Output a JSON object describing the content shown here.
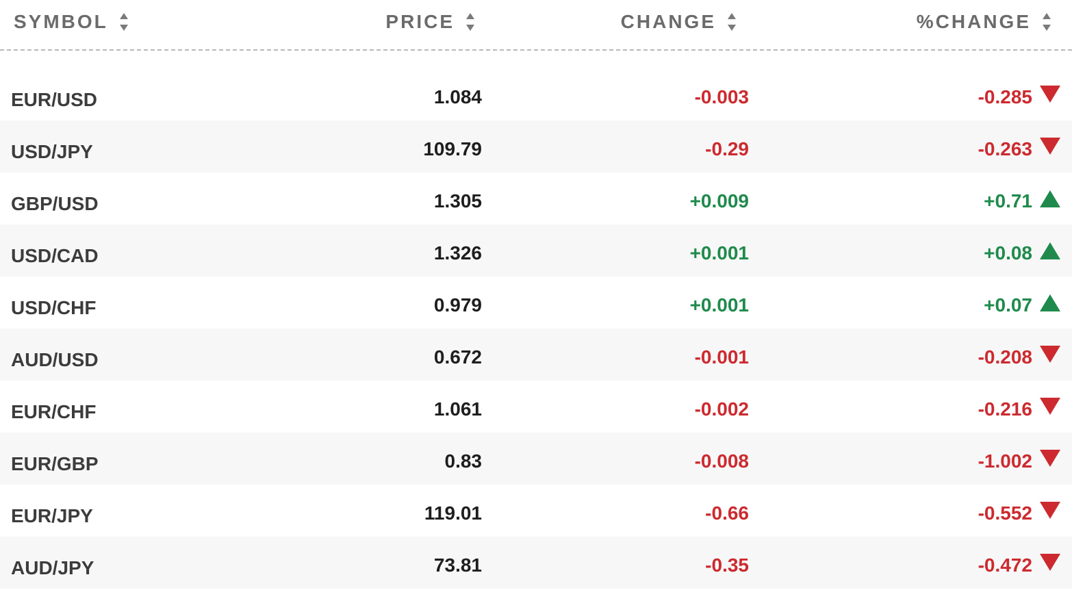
{
  "headers": {
    "symbol": "SYMBOL",
    "price": "PRICE",
    "change": "CHANGE",
    "pct_change": "%CHANGE"
  },
  "colors": {
    "up": "#1f8a4c",
    "down": "#cc2a2f"
  },
  "rows": [
    {
      "symbol": "EUR/USD",
      "price": "1.084",
      "change": "-0.003",
      "pct_change": "-0.285",
      "direction": "down"
    },
    {
      "symbol": "USD/JPY",
      "price": "109.79",
      "change": "-0.29",
      "pct_change": "-0.263",
      "direction": "down"
    },
    {
      "symbol": "GBP/USD",
      "price": "1.305",
      "change": "+0.009",
      "pct_change": "+0.71",
      "direction": "up"
    },
    {
      "symbol": "USD/CAD",
      "price": "1.326",
      "change": "+0.001",
      "pct_change": "+0.08",
      "direction": "up"
    },
    {
      "symbol": "USD/CHF",
      "price": "0.979",
      "change": "+0.001",
      "pct_change": "+0.07",
      "direction": "up"
    },
    {
      "symbol": "AUD/USD",
      "price": "0.672",
      "change": "-0.001",
      "pct_change": "-0.208",
      "direction": "down"
    },
    {
      "symbol": "EUR/CHF",
      "price": "1.061",
      "change": "-0.002",
      "pct_change": "-0.216",
      "direction": "down"
    },
    {
      "symbol": "EUR/GBP",
      "price": "0.83",
      "change": "-0.008",
      "pct_change": "-1.002",
      "direction": "down"
    },
    {
      "symbol": "EUR/JPY",
      "price": "119.01",
      "change": "-0.66",
      "pct_change": "-0.552",
      "direction": "down"
    },
    {
      "symbol": "AUD/JPY",
      "price": "73.81",
      "change": "-0.35",
      "pct_change": "-0.472",
      "direction": "down"
    }
  ]
}
